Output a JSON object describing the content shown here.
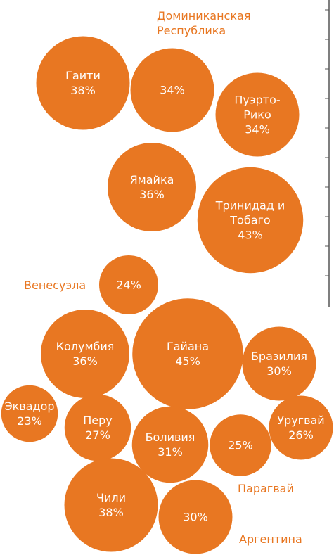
{
  "chart_data": {
    "type": "packed_bubble",
    "color": "#e87722",
    "categories": [
      "Гаити",
      "Доминиканская Республика",
      "Пуэрто-Рико",
      "Ямайка",
      "Тринидад и Тобаго",
      "Венесуэла",
      "Колумбия",
      "Гайана",
      "Бразилия",
      "Эквадор",
      "Перу",
      "Боливия",
      "Парагвай",
      "Уругвай",
      "Чили",
      "Аргентина"
    ],
    "values": [
      38,
      34,
      34,
      36,
      43,
      24,
      36,
      45,
      30,
      23,
      27,
      31,
      25,
      26,
      38,
      30
    ],
    "value_labels": [
      "38%",
      "34%",
      "34%",
      "36%",
      "43%",
      "24%",
      "36%",
      "45%",
      "30%",
      "23%",
      "27%",
      "31%",
      "25%",
      "26%",
      "38%",
      "30%"
    ]
  }
}
